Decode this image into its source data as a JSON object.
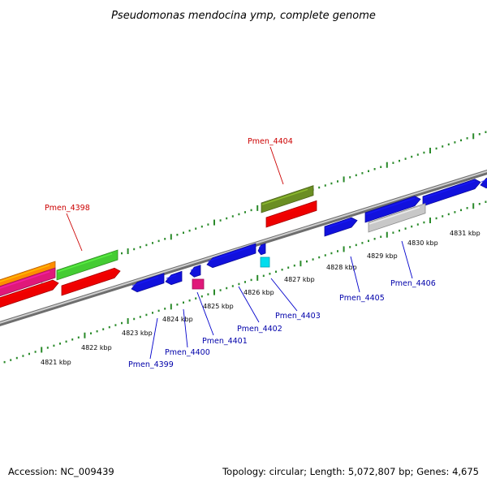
{
  "title": "Pseudomonas mendocina ymp, complete genome",
  "footer": {
    "accession": "Accession: NC_009439",
    "summary": "Topology: circular; Length: 5,072,807 bp; Genes: 4,675"
  },
  "colors": {
    "backbone": "#8a8a8a",
    "tick": "#2a8a2a",
    "label_red": "#cc0000",
    "label_blue": "#0000aa",
    "leader": "#0000cc"
  },
  "kbp_labels": [
    "4821 kbp",
    "4822 kbp",
    "4823 kbp",
    "4824 kbp",
    "4825 kbp",
    "4826 kbp",
    "4827 kbp",
    "4828 kbp",
    "4829 kbp",
    "4830 kbp",
    "4831 kbp"
  ],
  "gene_labels": [
    {
      "text": "Pmen_4398",
      "color": "red"
    },
    {
      "text": "Pmen_4404",
      "color": "red"
    },
    {
      "text": "Pmen_4399",
      "color": "blue"
    },
    {
      "text": "Pmen_4400",
      "color": "blue"
    },
    {
      "text": "Pmen_4401",
      "color": "blue"
    },
    {
      "text": "Pmen_4402",
      "color": "blue"
    },
    {
      "text": "Pmen_4403",
      "color": "blue"
    },
    {
      "text": "Pmen_4405",
      "color": "blue"
    },
    {
      "text": "Pmen_4406",
      "color": "blue"
    }
  ]
}
